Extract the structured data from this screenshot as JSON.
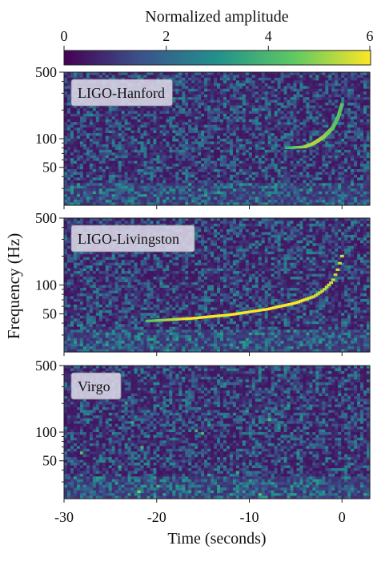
{
  "chart_data": {
    "type": "heatmap",
    "colorbar": {
      "label": "Normalized amplitude",
      "ticks": [
        "0",
        "2",
        "4",
        "6"
      ],
      "range": [
        0,
        6
      ],
      "colormap": "viridis",
      "colors": [
        "#440154",
        "#3b528b",
        "#21918c",
        "#5ec962",
        "#fde725"
      ]
    },
    "ylabel": "Frequency (Hz)",
    "xlabel": "Time (seconds)",
    "xlim": [
      -30,
      3
    ],
    "ylim": [
      20,
      500
    ],
    "yscale": "log",
    "xticks": [
      -30,
      -20,
      -10,
      0
    ],
    "xtick_labels": [
      "-30",
      "-20",
      "-10",
      "0"
    ],
    "yticks": [
      50,
      100,
      500
    ],
    "ytick_labels": [
      "50",
      "100",
      "500"
    ],
    "panels": [
      {
        "name": "LIGO-Hanford",
        "chirp": [
          [
            -6,
            80
          ],
          [
            -4,
            82
          ],
          [
            -3,
            90
          ],
          [
            -2,
            104
          ],
          [
            -1,
            130
          ],
          [
            -0.4,
            170
          ],
          [
            0,
            230
          ]
        ],
        "chirp_strength": 0.5
      },
      {
        "name": "LIGO-Livingston",
        "chirp": [
          [
            -21,
            42
          ],
          [
            -16,
            45
          ],
          [
            -12,
            49
          ],
          [
            -8,
            56
          ],
          [
            -5,
            65
          ],
          [
            -3,
            76
          ],
          [
            -2,
            88
          ],
          [
            -1,
            110
          ],
          [
            -0.4,
            150
          ],
          [
            0,
            200
          ]
        ],
        "chirp_strength": 0.85
      },
      {
        "name": "Virgo",
        "chirp": [],
        "chirp_strength": 0
      }
    ]
  }
}
